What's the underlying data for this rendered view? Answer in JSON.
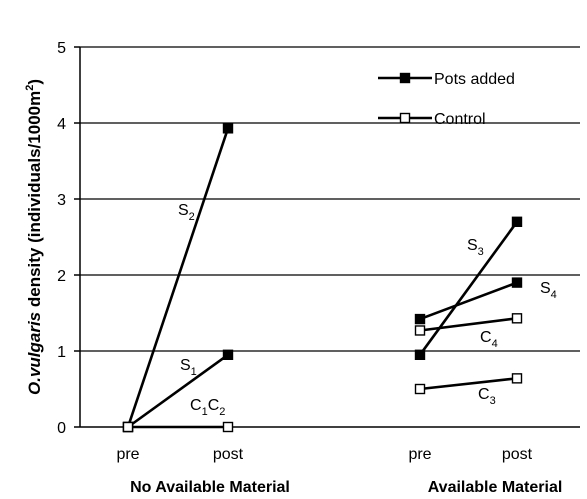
{
  "chart_data": {
    "type": "line",
    "ylabel": {
      "italic": "O.vulgaris",
      "rest": " density (individuals/1000m",
      "sup": "2",
      "end": ")"
    },
    "ylim": [
      0,
      5
    ],
    "yticks": [
      "0",
      "1",
      "2",
      "3",
      "4",
      "5"
    ],
    "grid": true,
    "groups": [
      {
        "name": "No Available Material",
        "x": [
          "pre",
          "post"
        ]
      },
      {
        "name": "Available Material",
        "x": [
          "pre",
          "post"
        ]
      }
    ],
    "legend": {
      "position": "top-right",
      "entries": [
        {
          "label": "Pots added",
          "marker": "filled-square"
        },
        {
          "label": "Control",
          "marker": "open-square"
        }
      ]
    },
    "series": [
      {
        "label": "S",
        "sub": "1",
        "group": 0,
        "kind": "Pots added",
        "values": [
          0,
          0.95
        ]
      },
      {
        "label": "S",
        "sub": "2",
        "group": 0,
        "kind": "Pots added",
        "values": [
          0,
          3.93
        ]
      },
      {
        "label": "C",
        "sub": "1",
        "label2": "C",
        "sub2": "2",
        "group": 0,
        "kind": "Control",
        "values": [
          0,
          0
        ]
      },
      {
        "label": "S",
        "sub": "3",
        "group": 1,
        "kind": "Pots added",
        "values": [
          0.95,
          2.7
        ]
      },
      {
        "label": "S",
        "sub": "4",
        "group": 1,
        "kind": "Pots added",
        "values": [
          1.42,
          1.9
        ]
      },
      {
        "label": "C",
        "sub": "4",
        "group": 1,
        "kind": "Control",
        "values": [
          1.27,
          1.43
        ]
      },
      {
        "label": "C",
        "sub": "3",
        "group": 1,
        "kind": "Control",
        "values": [
          0.5,
          0.64
        ]
      }
    ]
  }
}
